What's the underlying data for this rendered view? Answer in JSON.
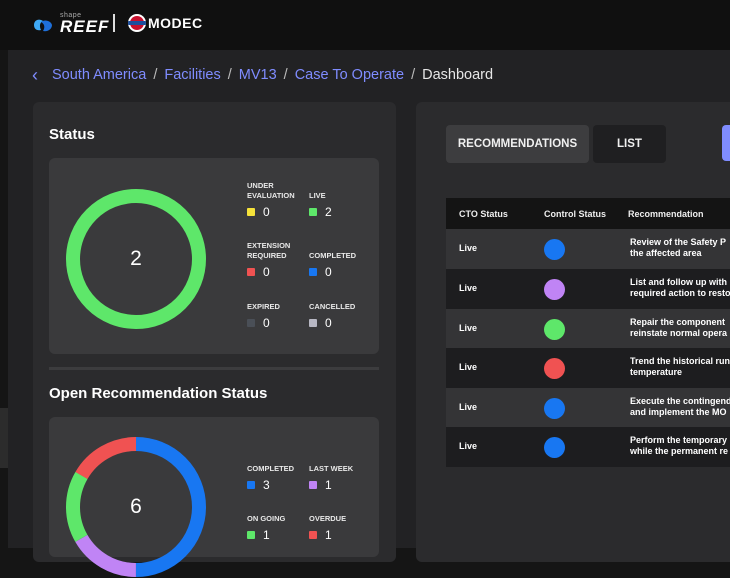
{
  "header": {
    "reef_small": "shape",
    "reef_logo": "REEF",
    "modec_logo": "MODEC"
  },
  "breadcrumb": {
    "items": [
      "South America",
      "Facilities",
      "MV13",
      "Case To Operate"
    ],
    "current": "Dashboard"
  },
  "status": {
    "title": "Status",
    "total": "2",
    "legend": [
      {
        "label1": "UNDER",
        "label2": "EVALUATION",
        "value": "0",
        "color": "#f5e23a"
      },
      {
        "label1": "LIVE",
        "label2": "",
        "value": "2",
        "color": "#5ee76a"
      },
      {
        "label1": "EXTENSION",
        "label2": "REQUIRED",
        "value": "0",
        "color": "#f05252"
      },
      {
        "label1": "COMPLETED",
        "label2": "",
        "value": "0",
        "color": "#1877f2"
      },
      {
        "label1": "EXPIRED",
        "label2": "",
        "value": "0",
        "color": "#4a4f57"
      },
      {
        "label1": "CANCELLED",
        "label2": "",
        "value": "0",
        "color": "#b8b8c4"
      }
    ]
  },
  "open_recs": {
    "title": "Open Recommendation Status",
    "total": "6",
    "legend": [
      {
        "label": "COMPLETED",
        "value": "3",
        "color": "#1877f2"
      },
      {
        "label": "LAST WEEK",
        "value": "1",
        "color": "#c084f5"
      },
      {
        "label": "ON GOING",
        "value": "1",
        "color": "#5ee76a"
      },
      {
        "label": "OVERDUE",
        "value": "1",
        "color": "#f05252"
      }
    ]
  },
  "tabs": {
    "recommendations": "RECOMMENDATIONS",
    "list": "LIST"
  },
  "table": {
    "headers": {
      "cto": "CTO Status",
      "control": "Control Status",
      "rec": "Recommendation"
    },
    "rows": [
      {
        "cto": "Live",
        "color": "#1877f2",
        "rec1": "Review of the Safety P",
        "rec2": "the affected area"
      },
      {
        "cto": "Live",
        "color": "#c084f5",
        "rec1": "List and follow up with",
        "rec2": "required action to resto"
      },
      {
        "cto": "Live",
        "color": "#5ee76a",
        "rec1": "Repair the component",
        "rec2": "reinstate normal opera"
      },
      {
        "cto": "Live",
        "color": "#f05252",
        "rec1": "Trend the historical run",
        "rec2": "temperature"
      },
      {
        "cto": "Live",
        "color": "#1877f2",
        "rec1": "Execute the contingend",
        "rec2": "and implement the MO"
      },
      {
        "cto": "Live",
        "color": "#1877f2",
        "rec1": "Perform the temporary",
        "rec2": "while the permanent re"
      }
    ]
  }
}
